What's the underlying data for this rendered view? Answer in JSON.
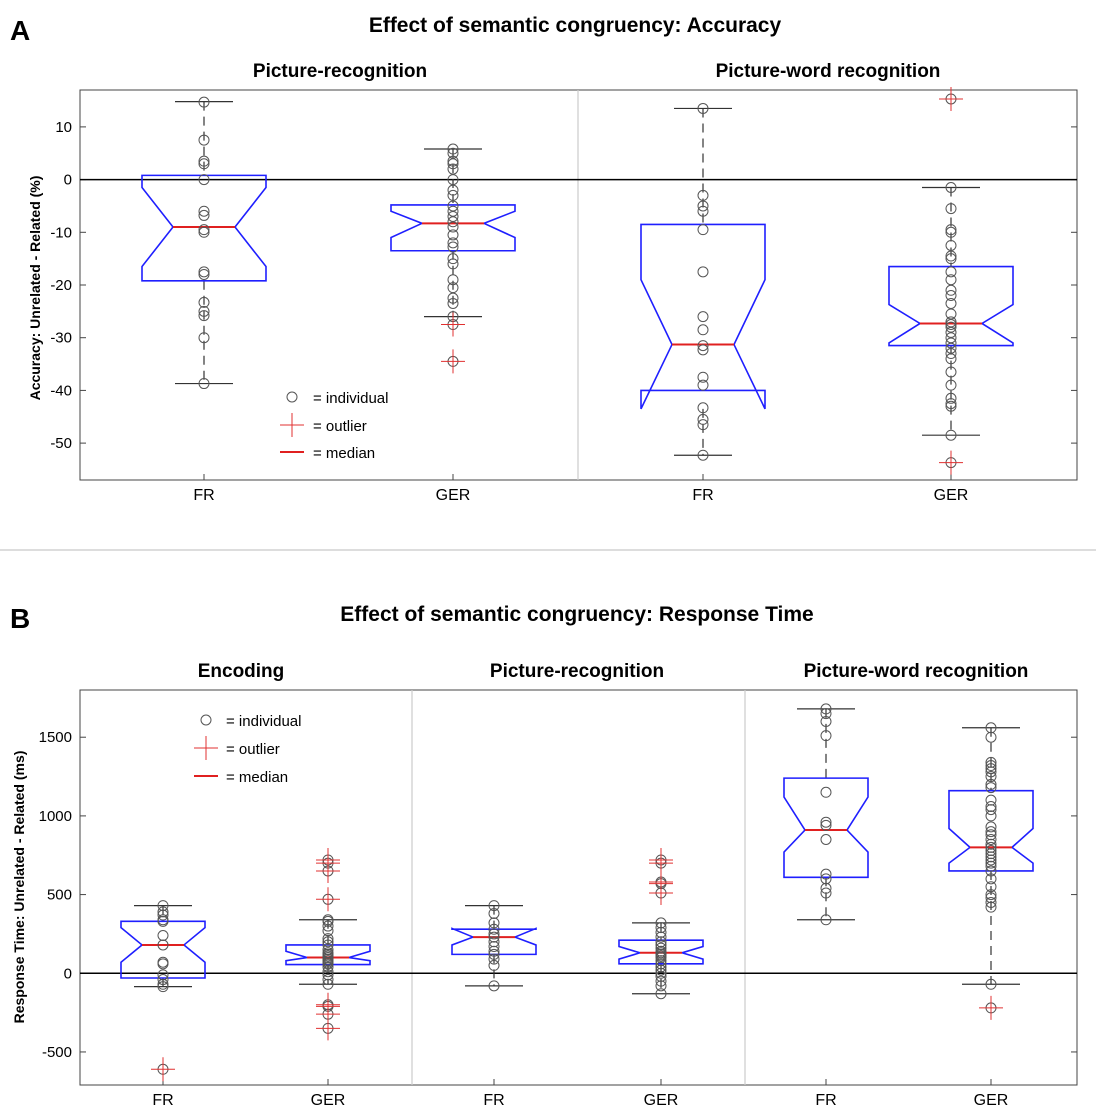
{
  "panels": [
    {
      "letter": "A",
      "title": "Effect of semantic congruency: Accuracy",
      "ylabel": "Accuracy: Unrelated - Related (%)",
      "legend": {
        "individual": "= individual",
        "outlier": "= outlier",
        "median": "= median"
      }
    },
    {
      "letter": "B",
      "title": "Effect of semantic congruency: Response Time",
      "ylabel": "Response Time: Unrelated - Related (ms)",
      "legend": {
        "individual": "= individual",
        "outlier": "= outlier",
        "median": "= median"
      }
    }
  ],
  "chart_data": [
    {
      "type": "box",
      "title": "Effect of semantic congruency: Accuracy",
      "ylabel": "Accuracy: Unrelated - Related (%)",
      "ylim": [
        -57,
        17
      ],
      "yticks": [
        10,
        0,
        -10,
        -20,
        -30,
        -40,
        -50
      ],
      "zero_line": true,
      "legend_position": "bottom-left",
      "groups": [
        {
          "title": "Picture-recognition",
          "boxes": [
            {
              "category": "FR",
              "q1": -19.2,
              "median": -9,
              "q3": 0.8,
              "notch_low": -16.5,
              "notch_high": -1.5,
              "whisker_low": -38.7,
              "whisker_high": 14.8,
              "individuals": [
                14.7,
                7.5,
                3.5,
                3.0,
                0,
                -6.0,
                -6.8,
                -9.5,
                -10.0,
                -17.5,
                -18.0,
                -23.3,
                -25.0,
                -25.8,
                -30.0,
                -38.7
              ],
              "outliers": []
            },
            {
              "category": "GER",
              "q1": -13.5,
              "median": -8.3,
              "q3": -4.8,
              "notch_low": -11,
              "notch_high": -6,
              "whisker_low": -26,
              "whisker_high": 5.8,
              "individuals": [
                5.8,
                5.0,
                3.5,
                3.0,
                2.0,
                0,
                -2.0,
                -3.0,
                -5.0,
                -6.0,
                -7.0,
                -8.0,
                -9.0,
                -10.5,
                -12.0,
                -12.8,
                -15.0,
                -16.0,
                -19.0,
                -20.5,
                -22.5,
                -23.5,
                -26.0,
                -27.5,
                -34.5
              ],
              "outliers": [
                -27.5,
                -34.5
              ]
            }
          ]
        },
        {
          "title": "Picture-word recognition",
          "boxes": [
            {
              "category": "FR",
              "q1": -40,
              "median": -31.3,
              "q3": -8.5,
              "notch_low": -43.5,
              "notch_high": -19,
              "whisker_low": -52.3,
              "whisker_high": 13.5,
              "individuals": [
                13.5,
                -3.0,
                -5.0,
                -6.0,
                -9.5,
                -17.5,
                -26.0,
                -28.5,
                -31.5,
                -32.3,
                -37.5,
                -39.0,
                -43.3,
                -45.5,
                -46.5,
                -52.3
              ],
              "outliers": []
            },
            {
              "category": "GER",
              "q1": -31.5,
              "median": -27.3,
              "q3": -16.5,
              "notch_low": -31,
              "notch_high": -23.7,
              "whisker_low": -48.5,
              "whisker_high": -1.5,
              "individuals": [
                -1.5,
                -5.5,
                -9.5,
                -10.0,
                -12.5,
                -14.5,
                -15.0,
                -17.5,
                -19.0,
                -21.0,
                -22.0,
                -23.5,
                -25.5,
                -27.0,
                -27.5,
                -28.0,
                -29.0,
                -30.0,
                -31.0,
                -32.0,
                -33.0,
                -34.0,
                -36.5,
                -39.0,
                -41.5,
                -42.5,
                -43.0,
                -48.5,
                15.3,
                -53.7
              ],
              "outliers": [
                15.3,
                -53.7
              ]
            }
          ]
        }
      ]
    },
    {
      "type": "box",
      "title": "Effect of semantic congruency: Response Time",
      "ylabel": "Response Time: Unrelated - Related (ms)",
      "ylim": [
        -710,
        1800
      ],
      "yticks": [
        1500,
        1000,
        500,
        0,
        -500
      ],
      "zero_line": true,
      "legend_position": "top-left",
      "groups": [
        {
          "title": "Encoding",
          "boxes": [
            {
              "category": "FR",
              "q1": -30,
              "median": 180,
              "q3": 330,
              "notch_low": 70,
              "notch_high": 290,
              "whisker_low": -85,
              "whisker_high": 430,
              "individuals": [
                430,
                390,
                370,
                340,
                330,
                240,
                180,
                70,
                60,
                -10,
                -40,
                -70,
                -85,
                -610
              ],
              "outliers": [
                -610
              ]
            }
          ]
        },
        {
          "title": "Encoding",
          "boxes": [
            {
              "category": "GER",
              "q1": 55,
              "median": 100,
              "q3": 180,
              "notch_low": 80,
              "notch_high": 140,
              "whisker_low": -70,
              "whisker_high": 340,
              "individuals": [
                340,
                330,
                300,
                270,
                220,
                200,
                180,
                150,
                130,
                120,
                110,
                100,
                90,
                80,
                70,
                60,
                40,
                10,
                -10,
                -40,
                -70,
                -200,
                -210,
                -260,
                -350,
                470,
                650,
                700,
                720
              ],
              "outliers": [
                720,
                700,
                650,
                470,
                -200,
                -210,
                -260,
                -350
              ]
            }
          ]
        },
        {
          "title": "Picture-recognition",
          "boxes": [
            {
              "category": "FR",
              "q1": 120,
              "median": 230,
              "q3": 280,
              "notch_low": 180,
              "notch_high": 285,
              "whisker_low": -80,
              "whisker_high": 430,
              "individuals": [
                430,
                380,
                320,
                280,
                250,
                230,
                200,
                170,
                140,
                120,
                90,
                50,
                -80
              ],
              "outliers": []
            },
            {
              "category": "GER",
              "q1": 60,
              "median": 130,
              "q3": 210,
              "notch_low": 90,
              "notch_high": 170,
              "whisker_low": -130,
              "whisker_high": 320,
              "individuals": [
                320,
                290,
                260,
                230,
                200,
                180,
                160,
                140,
                130,
                120,
                110,
                100,
                80,
                60,
                40,
                20,
                0,
                -20,
                -50,
                -80,
                -130,
                720,
                700,
                580,
                570,
                510
              ],
              "outliers": [
                720,
                700,
                580,
                570,
                510
              ]
            }
          ]
        },
        {
          "title": "Picture-word recognition",
          "boxes": [
            {
              "category": "FR",
              "q1": 610,
              "median": 910,
              "q3": 1240,
              "notch_low": 770,
              "notch_high": 1120,
              "whisker_low": 340,
              "whisker_high": 1680,
              "individuals": [
                1680,
                1650,
                1600,
                1510,
                1150,
                960,
                940,
                850,
                630,
                600,
                540,
                510,
                340
              ],
              "outliers": []
            },
            {
              "category": "GER",
              "q1": 650,
              "median": 800,
              "q3": 1160,
              "notch_low": 700,
              "notch_high": 920,
              "whisker_low": -70,
              "whisker_high": 1560,
              "individuals": [
                1560,
                1500,
                1340,
                1320,
                1300,
                1280,
                1250,
                1200,
                1180,
                1100,
                1060,
                1040,
                1000,
                930,
                900,
                880,
                850,
                820,
                800,
                780,
                760,
                740,
                720,
                700,
                680,
                650,
                600,
                550,
                500,
                480,
                450,
                420,
                -70,
                -220
              ],
              "outliers": [
                -220
              ]
            }
          ]
        }
      ]
    }
  ]
}
